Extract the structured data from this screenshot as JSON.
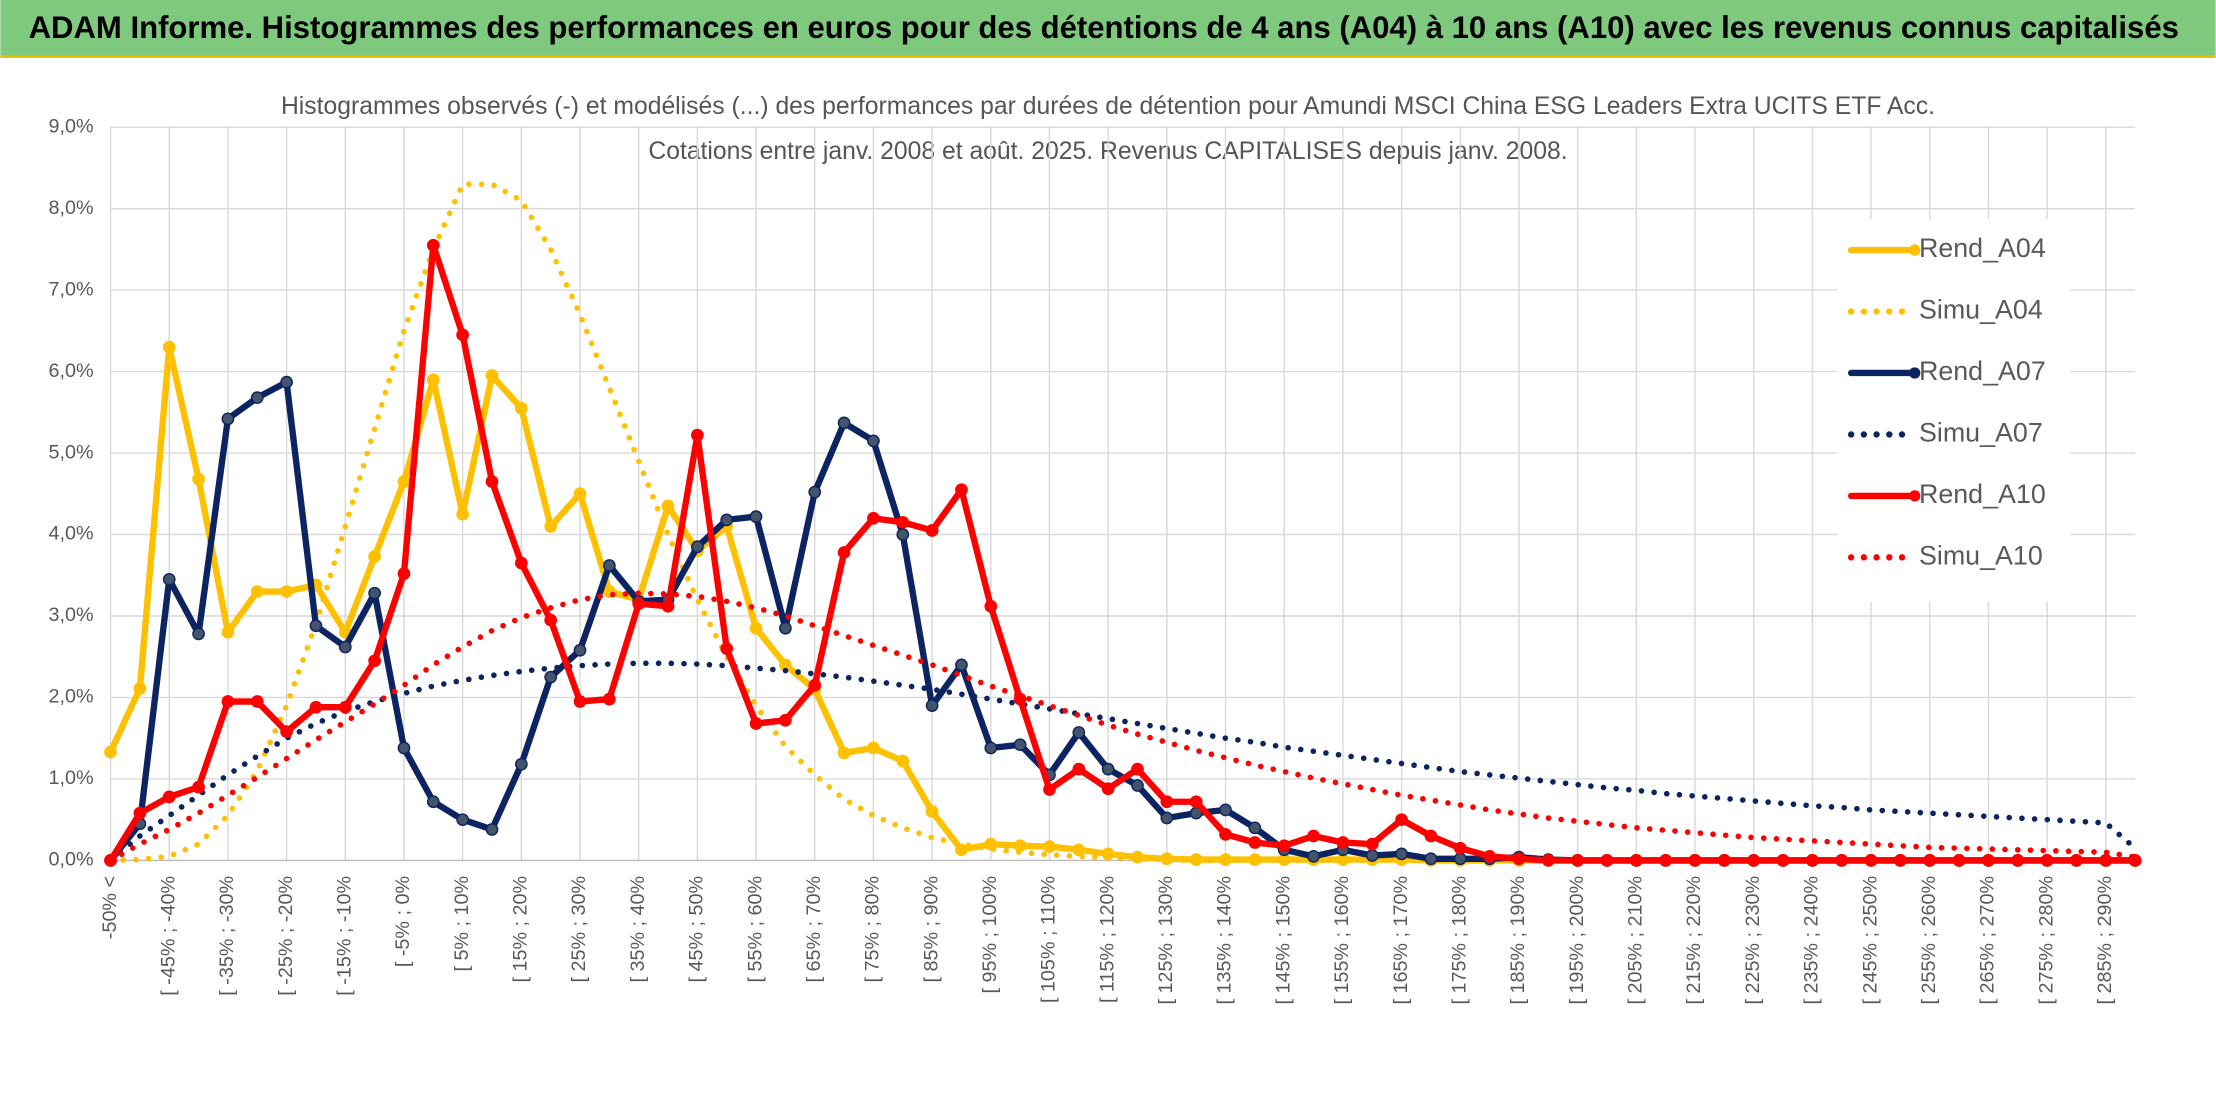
{
  "header": {
    "title": "ADAM Informe. Histogrammes des performances en euros pour des détentions de 4 ans (A04) à 10 ans (A10) avec les revenus connus capitalisés"
  },
  "chart_data": {
    "type": "line",
    "subtitle": [
      "Histogrammes observés (-) et modélisés (...) des performances par durées de détention pour Amundi MSCI China ESG Leaders Extra UCITS ETF Acc.",
      "Cotations entre janv. 2008 et août. 2025. Revenus CAPITALISES depuis janv. 2008."
    ],
    "categories": [
      "-50% <",
      null,
      "[ -45% ; -40%",
      null,
      "[ -35% ; -30%",
      null,
      "[ -25% ; -20%",
      null,
      "[ -15% ; -10%",
      null,
      "[ -5% ; 0%",
      null,
      "[ 5% ; 10%",
      null,
      "[ 15% ; 20%",
      null,
      "[ 25% ; 30%",
      null,
      "[ 35% ; 40%",
      null,
      "[ 45% ; 50%",
      null,
      "[ 55% ; 60%",
      null,
      "[ 65% ; 70%",
      null,
      "[ 75% ; 80%",
      null,
      "[ 85% ; 90%",
      null,
      "[ 95% ; 100%",
      null,
      "[ 105% ; 110%",
      null,
      "[ 115% ; 120%",
      null,
      "[ 125% ; 130%",
      null,
      "[ 135% ; 140%",
      null,
      "[ 145% ; 150%",
      null,
      "[ 155% ; 160%",
      null,
      "[ 165% ; 170%",
      null,
      "[ 175% ; 180%",
      null,
      "[ 185% ; 190%",
      null,
      "[ 195% ; 200%",
      null,
      "[ 205% ; 210%",
      null,
      "[ 215% ; 220%",
      null,
      "[ 225% ; 230%",
      null,
      "[ 235% ; 240%",
      null,
      "[ 245% ; 250%",
      null,
      "[ 255% ; 260%",
      null,
      "[ 265% ; 270%",
      null,
      "[ 275% ; 280%",
      null,
      "[ 285% ; 290%",
      null
    ],
    "series": [
      {
        "name": "Rend_A04",
        "color": "#ffc000",
        "line_style": "solid",
        "marker": true,
        "values": [
          1.33,
          2.11,
          6.3,
          4.68,
          2.8,
          3.3,
          3.3,
          3.38,
          2.8,
          3.73,
          4.65,
          5.9,
          4.25,
          5.95,
          5.55,
          4.1,
          4.5,
          3.3,
          3.2,
          4.35,
          3.8,
          4.1,
          2.85,
          2.4,
          2.1,
          1.32,
          1.38,
          1.22,
          0.6,
          0.13,
          0.2,
          0.18,
          0.17,
          0.13,
          0.08,
          0.04,
          0.02,
          0.01,
          0.01,
          0.01,
          0.01,
          0.01,
          0.01,
          0.01,
          0.01,
          0,
          0,
          0,
          0,
          0,
          0,
          0,
          0,
          0,
          0,
          0,
          0,
          0,
          0,
          0,
          0,
          0,
          0,
          0,
          0,
          0,
          0,
          0,
          0,
          0
        ]
      },
      {
        "name": "Simu_A04",
        "color": "#ffc000",
        "line_style": "dotted",
        "marker": false,
        "values": [
          0,
          0.01,
          0.05,
          0.2,
          0.55,
          1.1,
          1.9,
          2.9,
          4.1,
          5.3,
          6.5,
          7.5,
          8.3,
          8.3,
          8.1,
          7.5,
          6.7,
          5.8,
          4.9,
          4.0,
          3.2,
          2.5,
          1.9,
          1.4,
          1.05,
          0.75,
          0.55,
          0.4,
          0.28,
          0.2,
          0.14,
          0.1,
          0.07,
          0.05,
          0.03,
          0.02,
          0.01,
          0,
          0,
          0,
          0,
          0,
          0,
          0,
          0,
          0,
          0,
          0,
          0,
          0,
          0,
          0,
          0,
          0,
          0,
          0,
          0,
          0,
          0,
          0,
          0,
          0,
          0,
          0,
          0,
          0,
          0,
          0,
          0,
          0
        ]
      },
      {
        "name": "Rend_A07",
        "color": "#0c2461",
        "line_style": "solid",
        "marker": true,
        "values": [
          0,
          0.45,
          3.45,
          2.78,
          5.42,
          5.68,
          5.87,
          2.88,
          2.62,
          3.28,
          1.38,
          0.72,
          0.5,
          0.38,
          1.18,
          2.25,
          2.58,
          3.62,
          3.18,
          3.2,
          3.85,
          4.18,
          4.22,
          2.85,
          4.52,
          5.37,
          5.15,
          4.0,
          1.9,
          2.4,
          1.38,
          1.42,
          1.05,
          1.57,
          1.12,
          0.92,
          0.52,
          0.58,
          0.62,
          0.4,
          0.13,
          0.05,
          0.13,
          0.06,
          0.08,
          0.02,
          0.02,
          0.02,
          0.04,
          0.01,
          0,
          0,
          0,
          0,
          0,
          0,
          0,
          0,
          0,
          0,
          0,
          0,
          0,
          0,
          0,
          0,
          0,
          0,
          0,
          0
        ]
      },
      {
        "name": "Simu_A07",
        "color": "#0c2461",
        "line_style": "dotted",
        "marker": false,
        "values": [
          0,
          0.3,
          0.55,
          0.8,
          1.05,
          1.28,
          1.5,
          1.68,
          1.83,
          1.95,
          2.05,
          2.14,
          2.21,
          2.27,
          2.32,
          2.36,
          2.39,
          2.41,
          2.42,
          2.42,
          2.41,
          2.39,
          2.36,
          2.33,
          2.29,
          2.25,
          2.2,
          2.15,
          2.1,
          2.04,
          1.98,
          1.92,
          1.86,
          1.8,
          1.74,
          1.68,
          1.62,
          1.56,
          1.5,
          1.45,
          1.39,
          1.34,
          1.29,
          1.24,
          1.19,
          1.14,
          1.09,
          1.05,
          1.01,
          0.97,
          0.93,
          0.89,
          0.86,
          0.82,
          0.79,
          0.76,
          0.73,
          0.7,
          0.67,
          0.65,
          0.62,
          0.6,
          0.58,
          0.56,
          0.54,
          0.52,
          0.5,
          0.48,
          0.46,
          0.15
        ]
      },
      {
        "name": "Rend_A10",
        "color": "#ff0000",
        "line_style": "solid",
        "marker": true,
        "values": [
          0,
          0.58,
          0.78,
          0.9,
          1.95,
          1.95,
          1.58,
          1.88,
          1.88,
          2.45,
          3.52,
          7.55,
          6.45,
          4.65,
          3.65,
          2.95,
          1.95,
          1.98,
          3.15,
          3.12,
          5.22,
          2.6,
          1.68,
          1.72,
          2.15,
          3.78,
          4.2,
          4.15,
          4.05,
          4.55,
          3.12,
          1.98,
          0.87,
          1.12,
          0.88,
          1.12,
          0.72,
          0.72,
          0.32,
          0.22,
          0.18,
          0.3,
          0.22,
          0.2,
          0.5,
          0.3,
          0.15,
          0.05,
          0.02,
          0,
          0,
          0,
          0,
          0,
          0,
          0,
          0,
          0,
          0,
          0,
          0,
          0,
          0,
          0,
          0,
          0,
          0,
          0,
          0,
          0
        ]
      },
      {
        "name": "Simu_A10",
        "color": "#ff0000",
        "line_style": "dotted",
        "marker": false,
        "values": [
          0,
          0.2,
          0.38,
          0.58,
          0.8,
          1.02,
          1.25,
          1.48,
          1.7,
          1.92,
          2.15,
          2.4,
          2.62,
          2.82,
          2.98,
          3.1,
          3.2,
          3.26,
          3.28,
          3.27,
          3.24,
          3.18,
          3.1,
          3.0,
          2.88,
          2.76,
          2.64,
          2.52,
          2.4,
          2.27,
          2.14,
          2.02,
          1.9,
          1.78,
          1.66,
          1.55,
          1.45,
          1.35,
          1.26,
          1.17,
          1.09,
          1.01,
          0.94,
          0.87,
          0.8,
          0.74,
          0.68,
          0.62,
          0.57,
          0.52,
          0.48,
          0.44,
          0.4,
          0.37,
          0.34,
          0.31,
          0.28,
          0.26,
          0.24,
          0.22,
          0.2,
          0.18,
          0.16,
          0.15,
          0.14,
          0.13,
          0.12,
          0.11,
          0.1,
          0.04
        ]
      }
    ],
    "ylim": [
      0,
      9
    ],
    "yticks": [
      {
        "value": 0,
        "label": "0,0%"
      },
      {
        "value": 1,
        "label": "1,0%"
      },
      {
        "value": 2,
        "label": "2,0%"
      },
      {
        "value": 3,
        "label": "3,0%"
      },
      {
        "value": 4,
        "label": "4,0%"
      },
      {
        "value": 5,
        "label": "5,0%"
      },
      {
        "value": 6,
        "label": "6,0%"
      },
      {
        "value": 7,
        "label": "7,0%"
      },
      {
        "value": 8,
        "label": "8,0%"
      },
      {
        "value": 9,
        "label": "9,0%"
      }
    ],
    "grid": true,
    "legend": "upper right"
  }
}
